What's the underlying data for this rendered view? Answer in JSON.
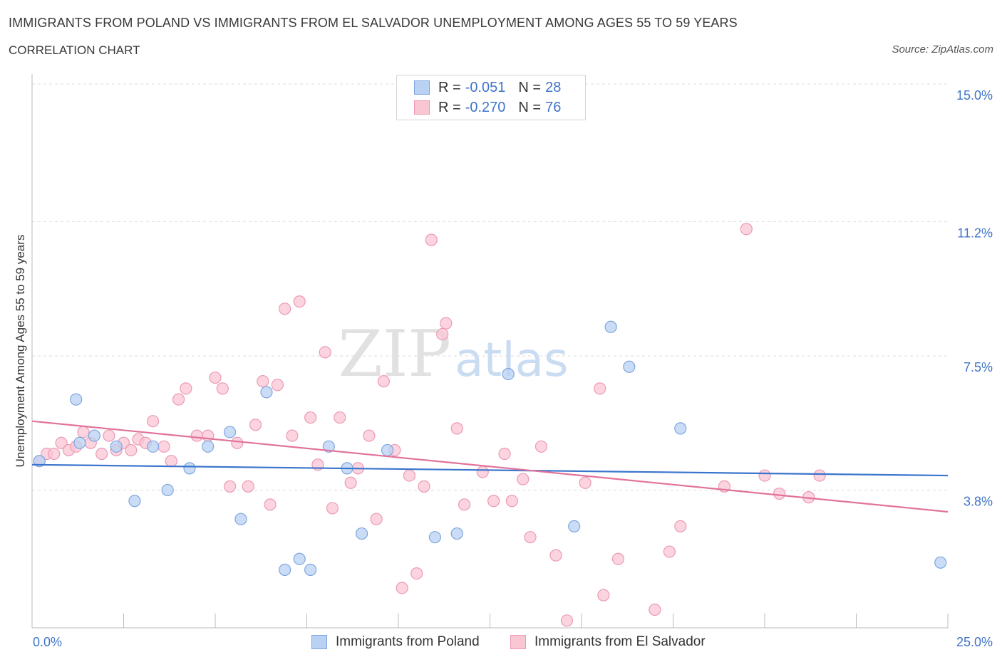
{
  "header": {
    "title": "IMMIGRANTS FROM POLAND VS IMMIGRANTS FROM EL SALVADOR UNEMPLOYMENT AMONG AGES 55 TO 59 YEARS",
    "subtitle": "CORRELATION CHART",
    "source": "Source: ZipAtlas.com"
  },
  "watermark": {
    "zip": "ZIP",
    "atlas": "atlas"
  },
  "legend_stats": [
    {
      "r_label": "R =",
      "r_value": "-0.051",
      "n_label": "N =",
      "n_value": "28"
    },
    {
      "r_label": "R =",
      "r_value": "-0.270",
      "n_label": "N =",
      "n_value": "76"
    }
  ],
  "colors": {
    "poland_fill": "#b9d1f3",
    "poland_stroke": "#7ea6df",
    "poland_line": "#3a74cc",
    "elsalvador_fill": "#f9c6d4",
    "elsalvador_stroke": "#ec9ab3",
    "elsalvador_line": "#e2729b",
    "tick_label": "#3f74c9"
  },
  "chart_data": {
    "type": "scatter",
    "title": "IMMIGRANTS FROM POLAND VS IMMIGRANTS FROM EL SALVADOR UNEMPLOYMENT AMONG AGES 55 TO 59 YEARS",
    "xlabel": "",
    "ylabel": "Unemployment Among Ages 55 to 59 years",
    "xlim": [
      0,
      25
    ],
    "ylim": [
      0,
      15
    ],
    "x_tick_labels": [
      "0.0%",
      "25.0%"
    ],
    "y_ticks": [
      3.8,
      7.5,
      11.2,
      15.0
    ],
    "y_tick_labels": [
      "3.8%",
      "7.5%",
      "11.2%",
      "15.0%"
    ],
    "grid": true,
    "legend_position": "bottom",
    "series": [
      {
        "name": "Immigrants from Poland",
        "r": -0.051,
        "n": 28,
        "trend": [
          [
            0,
            4.5
          ],
          [
            25,
            4.2
          ]
        ],
        "points": [
          [
            0.2,
            4.6
          ],
          [
            1.2,
            6.3
          ],
          [
            1.3,
            5.1
          ],
          [
            1.7,
            5.3
          ],
          [
            2.3,
            5.0
          ],
          [
            2.8,
            3.5
          ],
          [
            3.3,
            5.0
          ],
          [
            3.7,
            3.8
          ],
          [
            4.3,
            4.4
          ],
          [
            4.8,
            5.0
          ],
          [
            5.4,
            5.4
          ],
          [
            5.7,
            3.0
          ],
          [
            6.4,
            6.5
          ],
          [
            6.9,
            1.6
          ],
          [
            7.3,
            1.9
          ],
          [
            7.6,
            1.6
          ],
          [
            8.1,
            5.0
          ],
          [
            8.6,
            4.4
          ],
          [
            9.0,
            2.6
          ],
          [
            9.7,
            4.9
          ],
          [
            11.0,
            2.5
          ],
          [
            11.6,
            2.6
          ],
          [
            13.0,
            7.0
          ],
          [
            14.8,
            2.8
          ],
          [
            15.8,
            8.3
          ],
          [
            16.3,
            7.2
          ],
          [
            17.7,
            5.5
          ],
          [
            24.8,
            1.8
          ]
        ]
      },
      {
        "name": "Immigrants from El Salvador",
        "r": -0.27,
        "n": 76,
        "trend": [
          [
            0,
            5.7
          ],
          [
            25,
            3.2
          ]
        ],
        "points": [
          [
            0.2,
            4.6
          ],
          [
            0.4,
            4.8
          ],
          [
            0.6,
            4.8
          ],
          [
            0.8,
            5.1
          ],
          [
            1.0,
            4.9
          ],
          [
            1.2,
            5.0
          ],
          [
            1.4,
            5.4
          ],
          [
            1.6,
            5.1
          ],
          [
            1.9,
            4.8
          ],
          [
            2.1,
            5.3
          ],
          [
            2.3,
            4.9
          ],
          [
            2.5,
            5.1
          ],
          [
            2.7,
            4.9
          ],
          [
            2.9,
            5.2
          ],
          [
            3.1,
            5.1
          ],
          [
            3.3,
            5.7
          ],
          [
            3.6,
            5.0
          ],
          [
            3.8,
            4.6
          ],
          [
            4.0,
            6.3
          ],
          [
            4.2,
            6.6
          ],
          [
            4.5,
            5.3
          ],
          [
            4.8,
            5.3
          ],
          [
            5.0,
            6.9
          ],
          [
            5.2,
            6.6
          ],
          [
            5.4,
            3.9
          ],
          [
            5.6,
            5.1
          ],
          [
            5.9,
            3.9
          ],
          [
            6.1,
            5.6
          ],
          [
            6.3,
            6.8
          ],
          [
            6.5,
            3.4
          ],
          [
            6.7,
            6.7
          ],
          [
            6.9,
            8.8
          ],
          [
            7.1,
            5.3
          ],
          [
            7.3,
            9.0
          ],
          [
            7.6,
            5.8
          ],
          [
            7.8,
            4.5
          ],
          [
            8.0,
            7.6
          ],
          [
            8.2,
            3.3
          ],
          [
            8.4,
            5.8
          ],
          [
            8.7,
            4.0
          ],
          [
            8.9,
            4.4
          ],
          [
            9.2,
            5.3
          ],
          [
            9.4,
            3.0
          ],
          [
            9.6,
            6.8
          ],
          [
            9.9,
            4.9
          ],
          [
            10.1,
            1.1
          ],
          [
            10.3,
            4.2
          ],
          [
            10.5,
            1.5
          ],
          [
            10.7,
            3.9
          ],
          [
            10.9,
            10.7
          ],
          [
            11.2,
            8.1
          ],
          [
            11.3,
            8.4
          ],
          [
            11.6,
            5.5
          ],
          [
            11.8,
            3.4
          ],
          [
            12.3,
            4.3
          ],
          [
            12.6,
            3.5
          ],
          [
            12.9,
            4.8
          ],
          [
            13.1,
            3.5
          ],
          [
            13.4,
            4.1
          ],
          [
            13.6,
            2.5
          ],
          [
            13.9,
            5.0
          ],
          [
            14.3,
            2.0
          ],
          [
            14.6,
            0.2
          ],
          [
            15.1,
            4.0
          ],
          [
            15.5,
            6.6
          ],
          [
            15.6,
            0.9
          ],
          [
            16.0,
            1.9
          ],
          [
            17.0,
            0.5
          ],
          [
            17.4,
            2.1
          ],
          [
            17.7,
            2.8
          ],
          [
            18.9,
            3.9
          ],
          [
            19.5,
            11.0
          ],
          [
            20.0,
            4.2
          ],
          [
            20.4,
            3.7
          ],
          [
            21.2,
            3.6
          ],
          [
            21.5,
            4.2
          ]
        ]
      }
    ]
  }
}
